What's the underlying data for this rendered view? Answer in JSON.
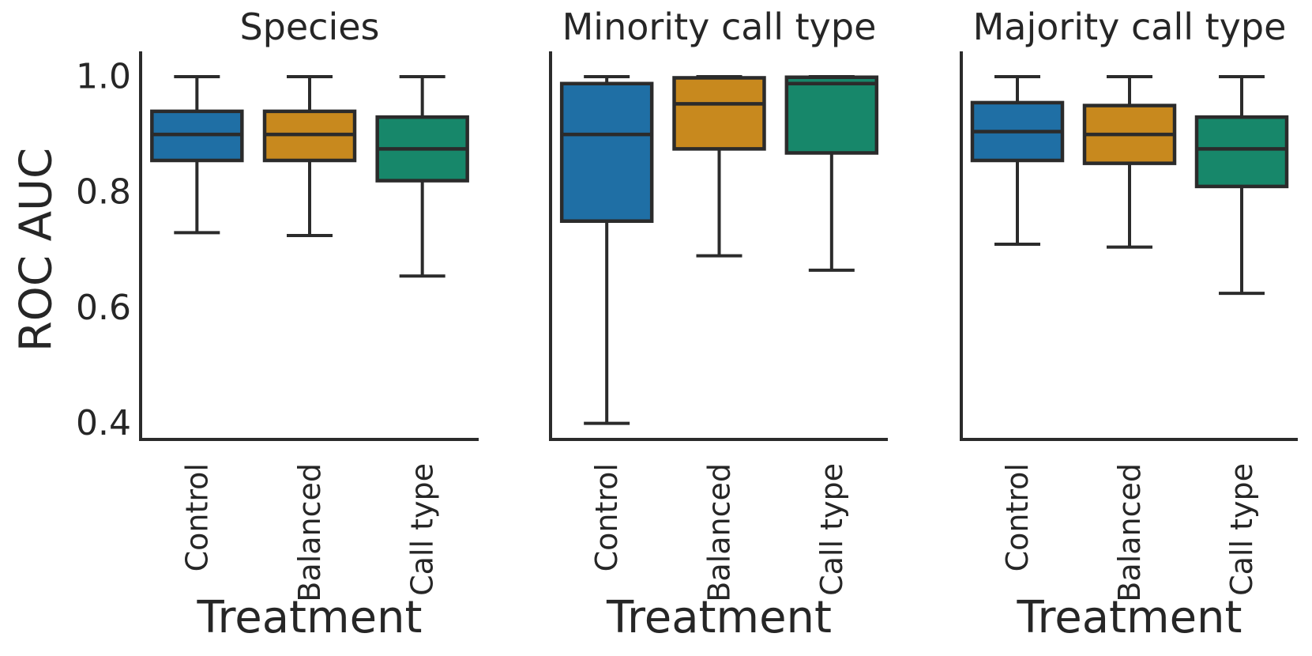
{
  "chart_data": {
    "type": "box",
    "title": "",
    "xlabel": "Treatment",
    "ylabel": "ROC AUC",
    "categories": [
      "Control",
      "Balanced",
      "Call type"
    ],
    "ytick_labels": [
      "1.0",
      "0.8",
      "0.6",
      "0.4"
    ],
    "yticks": [
      1.0,
      0.8,
      0.6,
      0.4
    ],
    "ylim": [
      0.37,
      1.045
    ],
    "grid": false,
    "legend": "none",
    "spines": "left-and-bottom-only",
    "colors": {
      "Control": "#1f6fa5",
      "Balanced": "#c8891e",
      "Call type": "#17876a",
      "edge": "#2b2b2b",
      "text": "#262626"
    },
    "panels": [
      {
        "title": "Species",
        "boxes": [
          {
            "category": "Control",
            "whislo": 0.73,
            "q1": 0.855,
            "med": 0.9,
            "q3": 0.94,
            "whishi": 1.0
          },
          {
            "category": "Balanced",
            "whislo": 0.725,
            "q1": 0.855,
            "med": 0.9,
            "q3": 0.94,
            "whishi": 1.0
          },
          {
            "category": "Call type",
            "whislo": 0.655,
            "q1": 0.82,
            "med": 0.875,
            "q3": 0.93,
            "whishi": 1.0
          }
        ]
      },
      {
        "title": "Minority call type",
        "boxes": [
          {
            "category": "Control",
            "whislo": 0.4,
            "q1": 0.75,
            "med": 0.9,
            "q3": 0.988,
            "whishi": 1.0
          },
          {
            "category": "Balanced",
            "whislo": 0.69,
            "q1": 0.875,
            "med": 0.953,
            "q3": 0.998,
            "whishi": 1.0
          },
          {
            "category": "Call type",
            "whislo": 0.665,
            "q1": 0.868,
            "med": 0.988,
            "q3": 0.999,
            "whishi": 1.0
          }
        ]
      },
      {
        "title": "Majority call type",
        "boxes": [
          {
            "category": "Control",
            "whislo": 0.71,
            "q1": 0.855,
            "med": 0.905,
            "q3": 0.955,
            "whishi": 1.0
          },
          {
            "category": "Balanced",
            "whislo": 0.705,
            "q1": 0.85,
            "med": 0.9,
            "q3": 0.95,
            "whishi": 1.0
          },
          {
            "category": "Call type",
            "whislo": 0.625,
            "q1": 0.81,
            "med": 0.875,
            "q3": 0.93,
            "whishi": 1.0
          }
        ]
      }
    ]
  }
}
